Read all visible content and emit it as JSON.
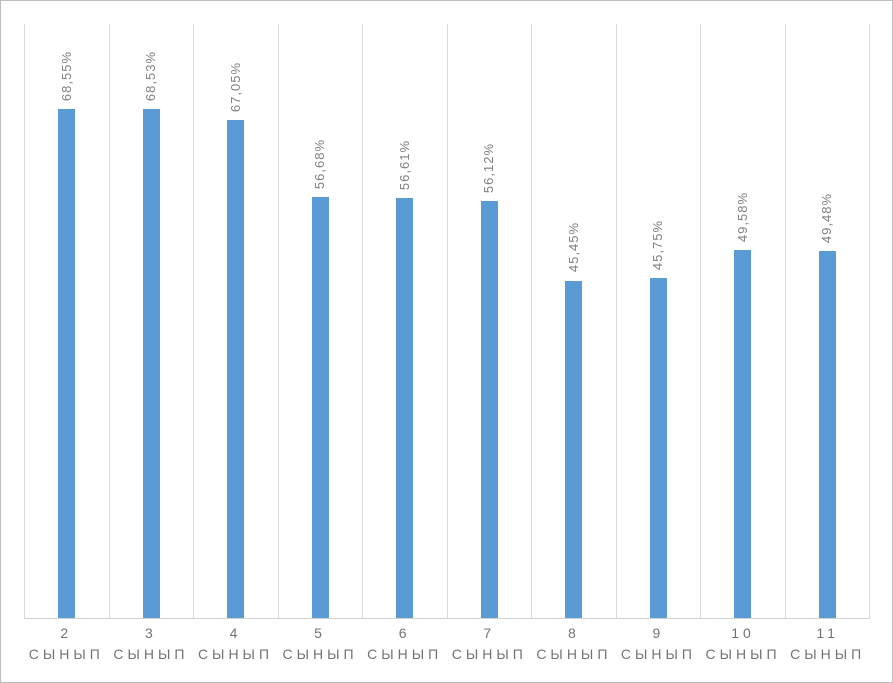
{
  "chart_data": {
    "type": "bar",
    "title": "",
    "xlabel": "",
    "ylabel": "",
    "categories": [
      "2 СЫНЫП",
      "3 СЫНЫП",
      "4 СЫНЫП",
      "5 СЫНЫП",
      "6 СЫНЫП",
      "7 СЫНЫП",
      "8 СЫНЫП",
      "9 СЫНЫП",
      "10 СЫНЫП",
      "11 СЫНЫП"
    ],
    "values": [
      68.55,
      68.53,
      67.05,
      56.68,
      56.61,
      56.12,
      45.45,
      45.75,
      49.58,
      49.48
    ],
    "data_labels": [
      "68,55%",
      "68,53%",
      "67,05%",
      "56,68%",
      "56,61%",
      "56,12%",
      "45,45%",
      "45,75%",
      "49,58%",
      "49,48%"
    ],
    "data_label_rotation_deg": 90,
    "ylim": [
      0,
      80
    ],
    "y_axis_visible": false,
    "grid": "vertical category separators only",
    "legend": "none",
    "colors": {
      "bar": "#5B9BD5",
      "gridline": "#D9D9D9",
      "axis_line": "#D2D2D2",
      "data_label_text": "#808080",
      "tick_label_text": "#737373",
      "frame_border": "#BEBEBE",
      "background": "#FFFFFF"
    }
  }
}
